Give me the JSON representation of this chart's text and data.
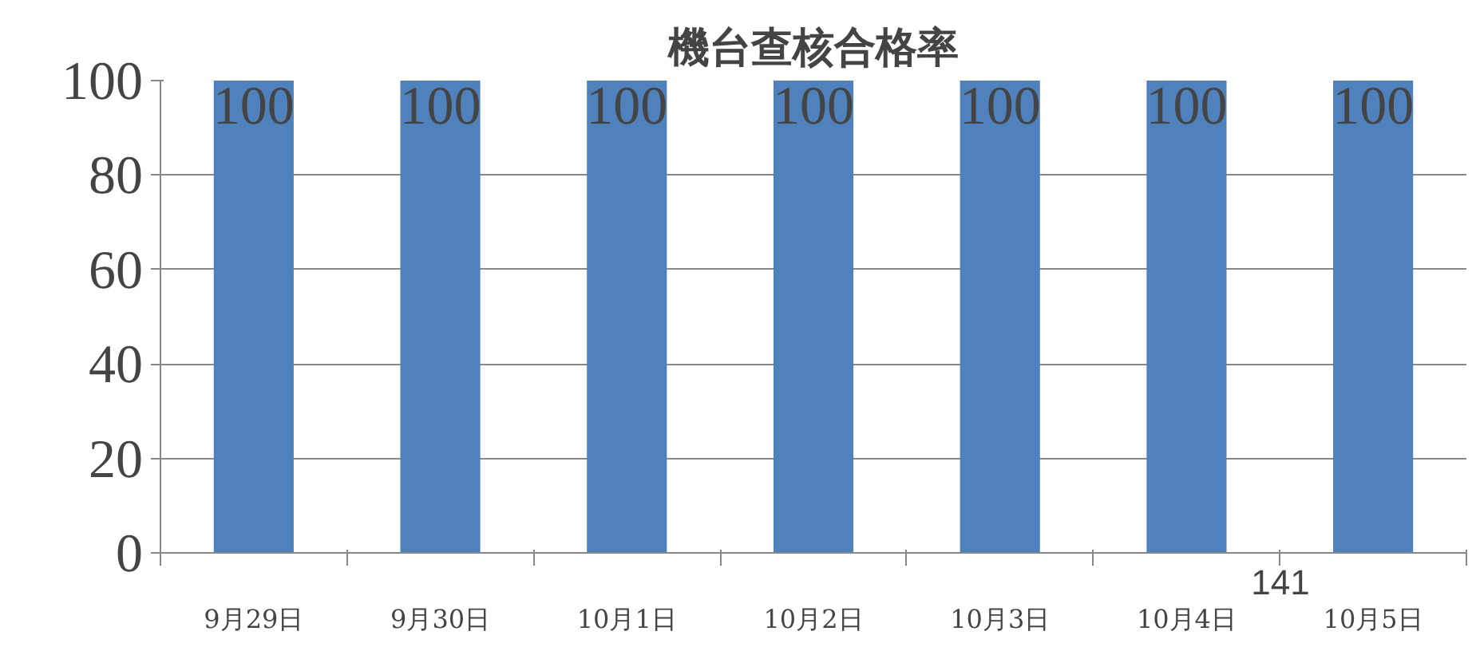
{
  "chart_data": {
    "type": "bar",
    "title": "機台查核合格率",
    "categories": [
      "9月29日",
      "9月30日",
      "10月1日",
      "10月2日",
      "10月3日",
      "10月4日",
      "10月5日"
    ],
    "values": [
      100,
      100,
      100,
      100,
      100,
      100,
      100
    ],
    "color": "#4f81bd",
    "ylim": [
      0,
      100
    ],
    "yticks": [
      0,
      20,
      40,
      60,
      80,
      100
    ],
    "grid": "y",
    "data_labels": true,
    "annotations": [
      "141"
    ]
  }
}
